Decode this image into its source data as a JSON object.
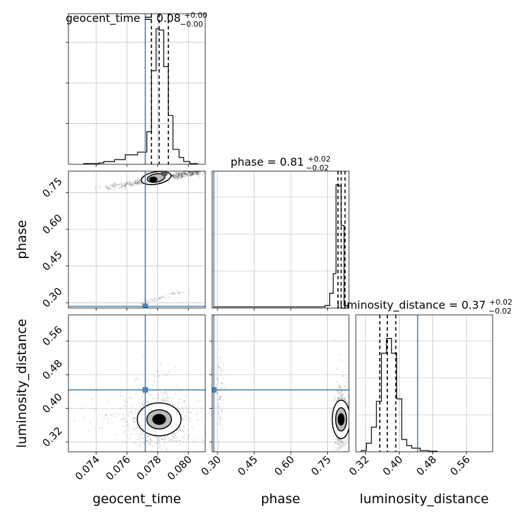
{
  "chart_data": {
    "type": "corner",
    "parameters": [
      "geocent_time",
      "phase",
      "luminosity_distance"
    ],
    "truths": {
      "geocent_time": 0.0772,
      "phase": 0.285,
      "luminosity_distance": 0.444
    },
    "axis_labels": {
      "x": [
        "geocent_time",
        "phase",
        "luminosity_distance"
      ],
      "y": [
        "phase",
        "luminosity_distance"
      ]
    },
    "ticks": {
      "geocent_time": [
        "0.074",
        "0.076",
        "0.078",
        "0.080"
      ],
      "phase": [
        "0.30",
        "0.45",
        "0.60",
        "0.75"
      ],
      "luminosity_distance": [
        "0.32",
        "0.40",
        "0.48",
        "0.56"
      ]
    },
    "marginal_titles": [
      {
        "param": "geocent_time",
        "main": "geocent_time = 0.08",
        "sup": "+0.00",
        "sub": "−0.00"
      },
      {
        "param": "phase",
        "main": "phase = 0.81",
        "sup": "+0.02",
        "sub": "−0.02"
      },
      {
        "param": "luminosity_distance",
        "main": "luminosity_distance = 0.37",
        "sup": "+0.02",
        "sub": "−0.02"
      }
    ],
    "ranges": {
      "geocent_time": [
        0.0722,
        0.0811
      ],
      "phase": [
        0.278,
        0.838
      ],
      "luminosity_distance": [
        0.297,
        0.622
      ]
    },
    "quantiles": {
      "geocent_time": [
        0.0776,
        0.0781,
        0.0787
      ],
      "phase": [
        0.793,
        0.806,
        0.822
      ],
      "luminosity_distance": [
        0.354,
        0.372,
        0.392
      ]
    },
    "histograms": {
      "geocent_time": {
        "edges": [
          0.0732,
          0.0742,
          0.0745,
          0.0752,
          0.0759,
          0.0767,
          0.0773,
          0.0776,
          0.0779,
          0.0781,
          0.0784,
          0.0787,
          0.079,
          0.0794,
          0.0797,
          0.0801,
          0.0806
        ],
        "counts": [
          0.005,
          0.01,
          0.02,
          0.035,
          0.07,
          0.09,
          0.24,
          0.69,
          1.0,
          0.99,
          0.72,
          0.36,
          0.11,
          0.05,
          0.02,
          0.005
        ]
      },
      "phase": {
        "edges": [
          0.285,
          0.32,
          0.74,
          0.759,
          0.774,
          0.785,
          0.797,
          0.806,
          0.818,
          0.833
        ],
        "counts": [
          0.01,
          0.01,
          0.02,
          0.12,
          0.28,
          1.0,
          0.99,
          0.67,
          0.02
        ]
      },
      "luminosity_distance": {
        "edges": [
          0.31,
          0.322,
          0.334,
          0.346,
          0.358,
          0.37,
          0.382,
          0.394,
          0.406,
          0.418,
          0.43,
          0.45,
          0.47,
          0.49
        ],
        "counts": [
          0.01,
          0.07,
          0.2,
          0.41,
          0.8,
          0.92,
          0.8,
          0.43,
          0.1,
          0.05,
          0.03,
          0.01,
          0.005
        ]
      }
    },
    "scatter": {
      "phase_vs_geocent_time": {
        "main_center": [
          0.0781,
          0.805
        ],
        "main_spread": [
          0.00075,
          0.012
        ],
        "trail": {
          "from": [
            0.0742,
            0.765
          ],
          "to": [
            0.0806,
            0.835
          ]
        },
        "low_mode": {
          "from": [
            0.0768,
            0.295
          ],
          "to": [
            0.0795,
            0.345
          ]
        },
        "contour_center": [
          0.0779,
          0.81
        ]
      },
      "luminosity_distance_vs_geocent_time": {
        "center": [
          0.0781,
          0.372
        ],
        "spread": [
          0.0009,
          0.028
        ],
        "contour_center": [
          0.0781,
          0.374
        ]
      },
      "luminosity_distance_vs_phase": {
        "center": [
          0.805,
          0.372
        ],
        "spread": [
          0.013,
          0.03
        ],
        "contour_center": [
          0.806,
          0.374
        ],
        "low_phase_cloud": [
          0.31,
          0.42
        ]
      }
    },
    "grid": true,
    "colors": {
      "truth": "#4682b4",
      "line": "#000000",
      "grid": "#b0b0b0",
      "points": "#000000"
    }
  }
}
